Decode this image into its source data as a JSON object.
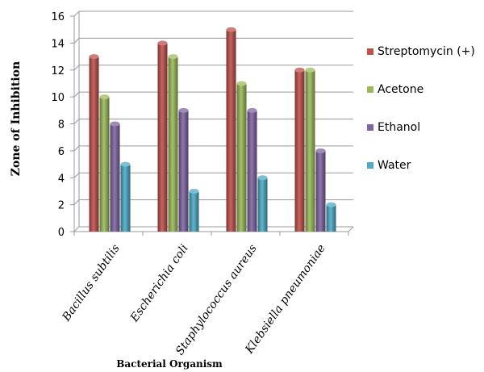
{
  "chart_data": {
    "type": "bar",
    "variant": "3d-clustered-column",
    "title": "",
    "xlabel": "Bacterial Organism",
    "ylabel": "Zone of Inhibition",
    "categories": [
      "Bacillus subtilis",
      "Escherichia coli",
      "Staphylococcus aureus",
      "Klebsiella pneumoniae"
    ],
    "series": [
      {
        "name": "Streptomycin (+)",
        "values": [
          13,
          14,
          15,
          12
        ],
        "color": "#c0504d"
      },
      {
        "name": "Acetone",
        "values": [
          10,
          13,
          11,
          12
        ],
        "color": "#9bbb59"
      },
      {
        "name": "Ethanol",
        "values": [
          8,
          9,
          9,
          6
        ],
        "color": "#8064a2"
      },
      {
        "name": "Water",
        "values": [
          5,
          3,
          4,
          2
        ],
        "color": "#4bacc6"
      }
    ],
    "ylim": [
      0,
      16
    ],
    "yticks": [
      0,
      2,
      4,
      6,
      8,
      10,
      12,
      14,
      16
    ],
    "grid": true,
    "legend_position": "right"
  }
}
